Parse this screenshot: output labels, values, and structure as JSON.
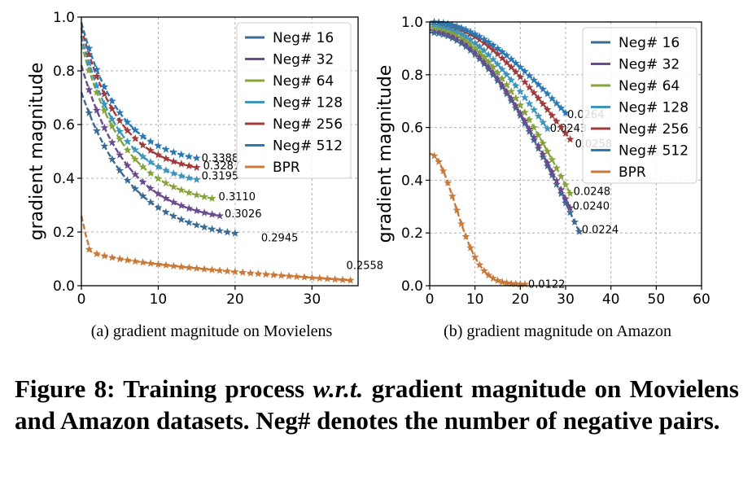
{
  "chart_data": [
    {
      "type": "line",
      "subcaption": "(a)  gradient magnitude on Movielens",
      "xlabel": "",
      "ylabel": "gradient magnitude",
      "xlim": [
        0,
        36
      ],
      "ylim": [
        0,
        1.0
      ],
      "xticks": [
        0,
        10,
        20,
        30
      ],
      "yticks": [
        0.0,
        0.2,
        0.4,
        0.6,
        0.8,
        1.0
      ],
      "grid": true,
      "legend_position": "top-right",
      "series": [
        {
          "name": "Neg# 16",
          "color": "#3b6a92",
          "start": 0.72,
          "end_x": 20,
          "end_y": 0.195,
          "k": 0.18,
          "label": "0.2945"
        },
        {
          "name": "Neg# 32",
          "color": "#6a4b8d",
          "start": 0.82,
          "end_x": 18,
          "end_y": 0.26,
          "k": 0.15,
          "label": "0.3026"
        },
        {
          "name": "Neg# 64",
          "color": "#87a33b",
          "start": 0.9,
          "end_x": 17,
          "end_y": 0.325,
          "k": 0.13,
          "label": "0.3110"
        },
        {
          "name": "Neg# 128",
          "color": "#3d95bb",
          "start": 0.93,
          "end_x": 15,
          "end_y": 0.395,
          "k": 0.12,
          "label": "0.3195"
        },
        {
          "name": "Neg# 256",
          "color": "#9e3b3b",
          "start": 0.96,
          "end_x": 15,
          "end_y": 0.44,
          "k": 0.11,
          "label": "0.3287"
        },
        {
          "name": "Neg# 512",
          "color": "#2a78b4",
          "start": 0.98,
          "end_x": 15,
          "end_y": 0.475,
          "k": 0.1,
          "label": "0.3388"
        },
        {
          "name": "BPR",
          "color": "#c87a3a",
          "start": 0.26,
          "end_x": 35,
          "end_y": 0.02,
          "k": 0.6,
          "label": "0.2558"
        }
      ]
    },
    {
      "type": "line",
      "subcaption": "(b)  gradient magnitude on Amazon",
      "xlabel": "",
      "ylabel": "gradient magnitude",
      "xlim": [
        0,
        60
      ],
      "ylim": [
        0,
        1.0
      ],
      "xticks": [
        0,
        10,
        20,
        30,
        40,
        50,
        60
      ],
      "yticks": [
        0.0,
        0.2,
        0.4,
        0.6,
        0.8,
        1.0
      ],
      "grid": true,
      "legend_position": "top-right",
      "series": [
        {
          "name": "Neg# 16",
          "color": "#3b6a92",
          "start": 0.96,
          "end_x": 33,
          "end_y": 0.205,
          "k": 0.0,
          "label": "0.0224"
        },
        {
          "name": "Neg# 32",
          "color": "#6a4b8d",
          "start": 0.97,
          "end_x": 31,
          "end_y": 0.295,
          "k": 0.0,
          "label": "0.0240"
        },
        {
          "name": "Neg# 64",
          "color": "#87a33b",
          "start": 0.98,
          "end_x": 31,
          "end_y": 0.35,
          "k": 0.0,
          "label": "0.0248"
        },
        {
          "name": "Neg# 128",
          "color": "#3d95bb",
          "start": 0.99,
          "end_x": 26,
          "end_y": 0.595,
          "k": 0.0,
          "label": "0.0243"
        },
        {
          "name": "Neg# 256",
          "color": "#9e3b3b",
          "start": 1.0,
          "end_x": 31,
          "end_y": 0.555,
          "k": 0.0,
          "label": "0.0258"
        },
        {
          "name": "Neg# 512",
          "color": "#2a78b4",
          "start": 1.0,
          "end_x": 30,
          "end_y": 0.655,
          "k": 0.0,
          "label": "0.0264"
        },
        {
          "name": "BPR",
          "color": "#c87a3a",
          "start": 0.5,
          "end_x": 21,
          "end_y": 0.005,
          "k": 0.0,
          "label": "0.0122"
        }
      ]
    }
  ],
  "caption": {
    "prefix": "Figure 8: Training process ",
    "italic": "w.r.t.",
    "suffix": " gradient magnitude on Movielens and Amazon datasets. Neg# denotes the number of negative pairs."
  }
}
